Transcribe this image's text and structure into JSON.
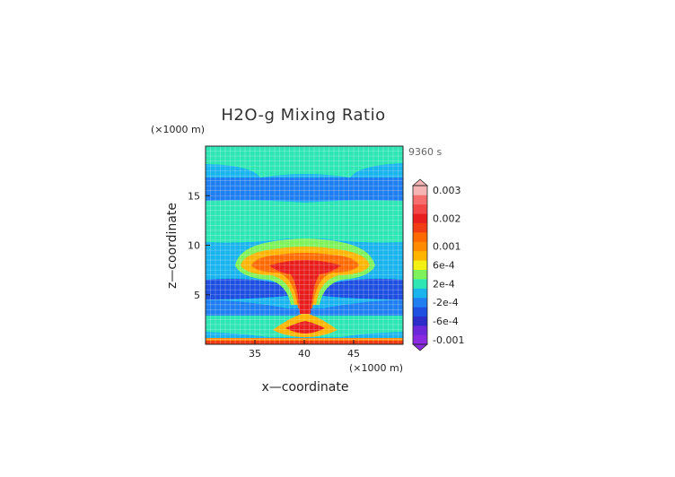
{
  "chart_data": {
    "type": "heatmap",
    "title": "H2O-g Mixing Ratio",
    "time_label": "9360 s",
    "xlabel": "x—coordinate",
    "ylabel": "z—coordinate",
    "x_unit": "(×1000 m)",
    "y_unit": "(×1000 m)",
    "xlim": [
      30,
      50
    ],
    "ylim": [
      0,
      20
    ],
    "x_ticks": [
      35,
      40,
      45
    ],
    "y_ticks": [
      5,
      10,
      15
    ],
    "grid": true,
    "colorbar": {
      "levels": [
        {
          "value": -0.001,
          "color": "#8a2be2"
        },
        {
          "value": -0.0008,
          "color": "#6a28d8"
        },
        {
          "value": -0.0006,
          "color": "#2c2cc8"
        },
        {
          "value": -0.0004,
          "color": "#1e4fe0"
        },
        {
          "value": -0.0002,
          "color": "#1f7ff0"
        },
        {
          "value": 0,
          "color": "#19b4ee"
        },
        {
          "value": 0.0002,
          "color": "#2ee6b4"
        },
        {
          "value": 0.0004,
          "color": "#7ef25a"
        },
        {
          "value": 0.0006,
          "color": "#f4f014"
        },
        {
          "value": 0.0008,
          "color": "#ffb400"
        },
        {
          "value": 0.001,
          "color": "#ff8c00"
        },
        {
          "value": 0.0012,
          "color": "#ff6a00"
        },
        {
          "value": 0.0015,
          "color": "#f23c14"
        },
        {
          "value": 0.002,
          "color": "#e81e1e"
        },
        {
          "value": 0.0022,
          "color": "#f24646"
        },
        {
          "value": 0.0025,
          "color": "#f46e6e"
        },
        {
          "value": 0.003,
          "color": "#f6b4b4"
        }
      ],
      "tick_labels": [
        {
          "value": 0.003,
          "label": "0.003"
        },
        {
          "value": 0.002,
          "label": "0.002"
        },
        {
          "value": 0.001,
          "label": "0.001"
        },
        {
          "value": 0.0006,
          "label": "6e-4"
        },
        {
          "value": 0.0002,
          "label": "2e-4"
        },
        {
          "value": -0.0002,
          "label": "-2e-4"
        },
        {
          "value": -0.0006,
          "label": "-6e-4"
        },
        {
          "value": -0.001,
          "label": "-0.001"
        }
      ]
    },
    "field_regions": [
      {
        "name": "upper-band-1",
        "value": 0.0002
      },
      {
        "name": "upper-band-2",
        "value": 0
      },
      {
        "name": "mid-band",
        "value": 0.0002
      },
      {
        "name": "anvil-outer",
        "value": 0.0004
      },
      {
        "name": "anvil-mid",
        "value": 0.0008
      },
      {
        "name": "anvil-core",
        "value": 0.0015
      },
      {
        "name": "column-core",
        "value": 0.002
      },
      {
        "name": "low-band",
        "value": -0.0004
      },
      {
        "name": "surface-layer",
        "value": 0.001
      }
    ]
  }
}
